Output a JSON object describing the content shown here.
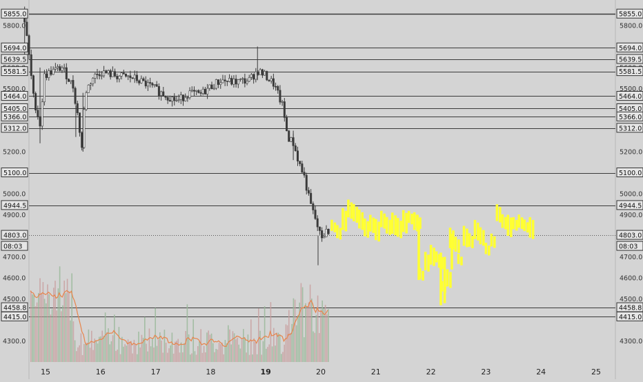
{
  "chart_data": {
    "type": "candlestick",
    "title": "",
    "ylim": [
      4270,
      5890
    ],
    "xlim": [
      14.6,
      25.2
    ],
    "y_ticks": [
      "5800.0",
      "5600.0",
      "5500.0",
      "5200.0",
      "5000.0",
      "4900.0",
      "4700.0",
      "4600.0",
      "4500.0",
      "4300.0"
    ],
    "x_ticks": [
      "15",
      "16",
      "17",
      "18",
      "19",
      "20",
      "21",
      "22",
      "23",
      "24",
      "25"
    ],
    "horizontal_levels": [
      "5855.0",
      "5694.0",
      "5639.5",
      "5581.5",
      "5464.0",
      "5405.0",
      "5366.0",
      "5312.0",
      "5100.0",
      "4944.5",
      "4458.8",
      "4415.0"
    ],
    "current_price": "4803.0",
    "countdown": "08:03",
    "colors": {
      "background": "#d4d4d4",
      "candles": "#3a3a3a",
      "projection": "#ffff33",
      "volume_up": "#9ab89a",
      "volume_down": "#c8a0a0",
      "volume_ma": "#e8844a",
      "level_line": "#3a3a3a"
    },
    "price_anchors": [
      [
        14.6,
        5860
      ],
      [
        14.68,
        5700
      ],
      [
        14.78,
        5460
      ],
      [
        14.9,
        5330
      ],
      [
        14.98,
        5560
      ],
      [
        15.1,
        5580
      ],
      [
        15.3,
        5600
      ],
      [
        15.5,
        5510
      ],
      [
        15.58,
        5380
      ],
      [
        15.66,
        5220
      ],
      [
        15.72,
        5480
      ],
      [
        15.85,
        5550
      ],
      [
        16.0,
        5580
      ],
      [
        16.3,
        5560
      ],
      [
        16.6,
        5550
      ],
      [
        16.95,
        5505
      ],
      [
        17.1,
        5480
      ],
      [
        17.4,
        5440
      ],
      [
        17.6,
        5480
      ],
      [
        17.8,
        5470
      ],
      [
        18.0,
        5510
      ],
      [
        18.2,
        5540
      ],
      [
        18.4,
        5530
      ],
      [
        18.7,
        5540
      ],
      [
        18.85,
        5585
      ],
      [
        19.0,
        5560
      ],
      [
        19.15,
        5520
      ],
      [
        19.3,
        5420
      ],
      [
        19.4,
        5270
      ],
      [
        19.5,
        5240
      ],
      [
        19.6,
        5150
      ],
      [
        19.7,
        5080
      ],
      [
        19.8,
        4960
      ],
      [
        19.9,
        4880
      ],
      [
        20.0,
        4790
      ],
      [
        20.1,
        4820
      ],
      [
        20.15,
        4800
      ]
    ],
    "projection": [
      [
        20.2,
        4850
      ],
      [
        20.3,
        4820
      ],
      [
        20.4,
        4880
      ],
      [
        20.5,
        4930
      ],
      [
        20.6,
        4910
      ],
      [
        20.7,
        4880
      ],
      [
        20.8,
        4840
      ],
      [
        20.9,
        4860
      ],
      [
        21.0,
        4830
      ],
      [
        21.1,
        4880
      ],
      [
        21.2,
        4850
      ],
      [
        21.3,
        4860
      ],
      [
        21.4,
        4840
      ],
      [
        21.5,
        4870
      ],
      [
        21.6,
        4890
      ],
      [
        21.7,
        4870
      ],
      [
        21.75,
        4870
      ],
      [
        21.8,
        4620
      ],
      [
        21.9,
        4680
      ],
      [
        22.0,
        4710
      ],
      [
        22.1,
        4700
      ],
      [
        22.15,
        4680
      ],
      [
        22.2,
        4560
      ],
      [
        22.3,
        4600
      ],
      [
        22.35,
        4790
      ],
      [
        22.45,
        4760
      ],
      [
        22.5,
        4690
      ],
      [
        22.6,
        4800
      ],
      [
        22.7,
        4780
      ],
      [
        22.8,
        4830
      ],
      [
        22.9,
        4800
      ],
      [
        23.0,
        4740
      ],
      [
        23.1,
        4780
      ],
      [
        23.2,
        4910
      ],
      [
        23.3,
        4870
      ],
      [
        23.4,
        4850
      ],
      [
        23.5,
        4860
      ],
      [
        23.6,
        4870
      ],
      [
        23.7,
        4850
      ],
      [
        23.8,
        4840
      ]
    ]
  }
}
